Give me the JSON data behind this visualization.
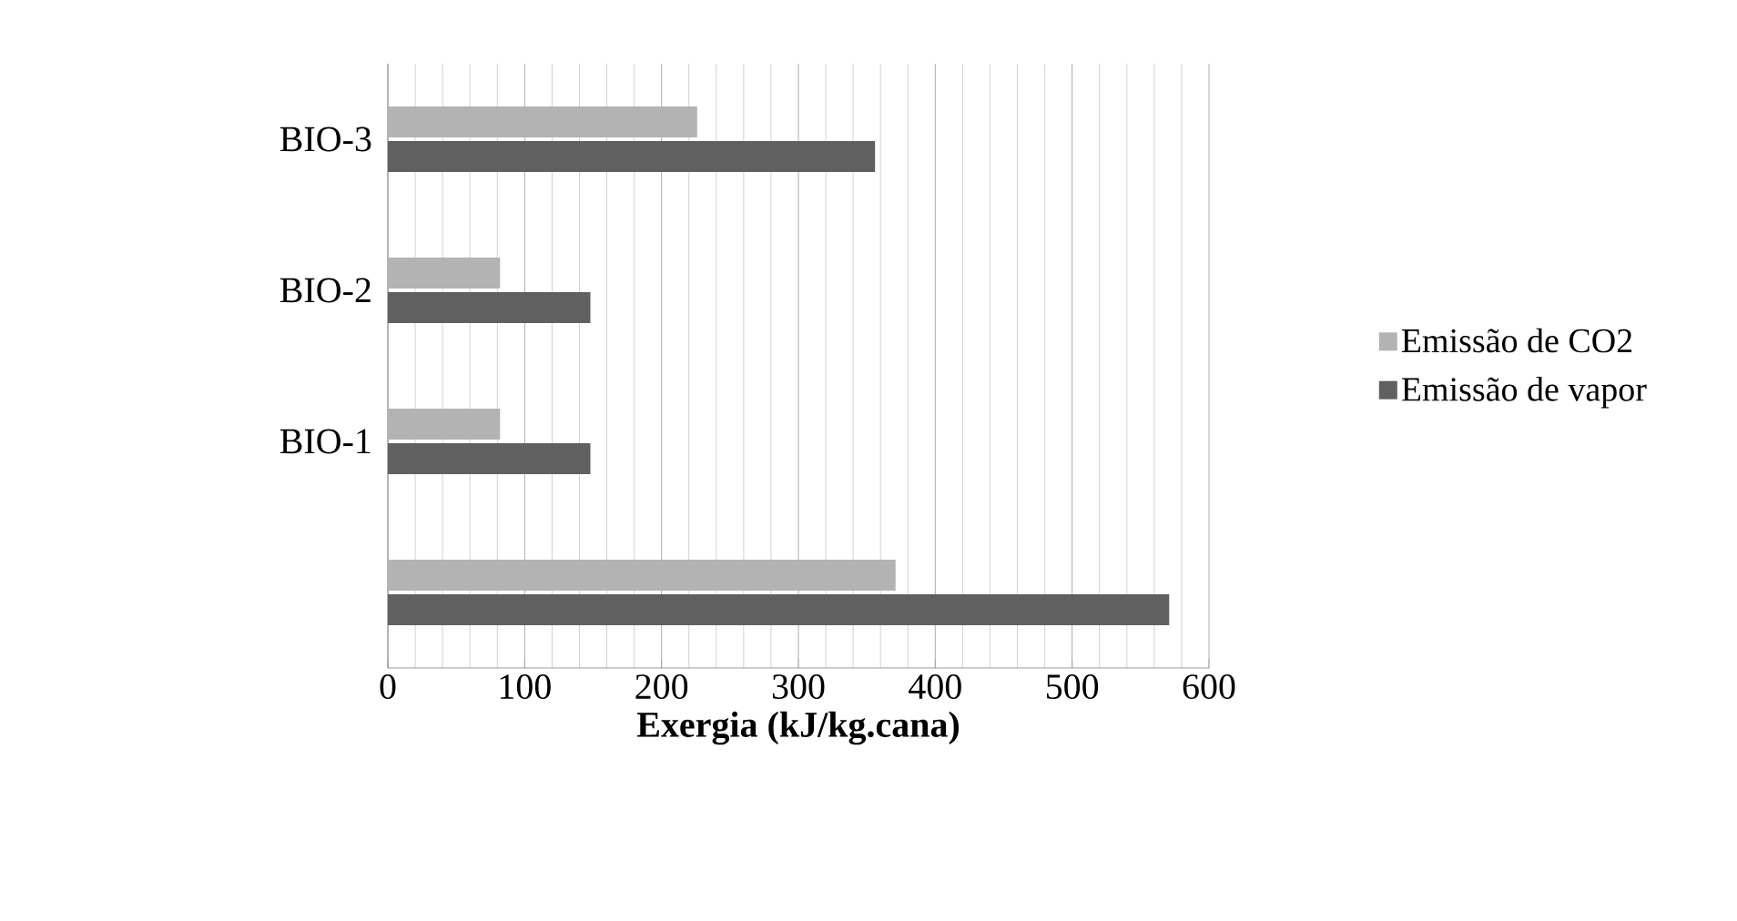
{
  "chart_data": {
    "type": "bar",
    "orientation": "horizontal",
    "xlabel": "Exergia (kJ/kg.cana)",
    "categories": [
      "BIO-3",
      "BIO-2",
      "BIO-1",
      null
    ],
    "series": [
      {
        "name": "Emissão de CO2",
        "color": "#b3b3b3",
        "values": [
          226,
          82,
          82,
          371
        ]
      },
      {
        "name": "Emissão de vapor",
        "color": "#606060",
        "values": [
          356,
          148,
          148,
          571
        ]
      }
    ],
    "xlim": [
      0,
      600
    ],
    "xticks": [
      0,
      100,
      200,
      300,
      400,
      500,
      600
    ],
    "grid": "x",
    "legend": "right"
  }
}
